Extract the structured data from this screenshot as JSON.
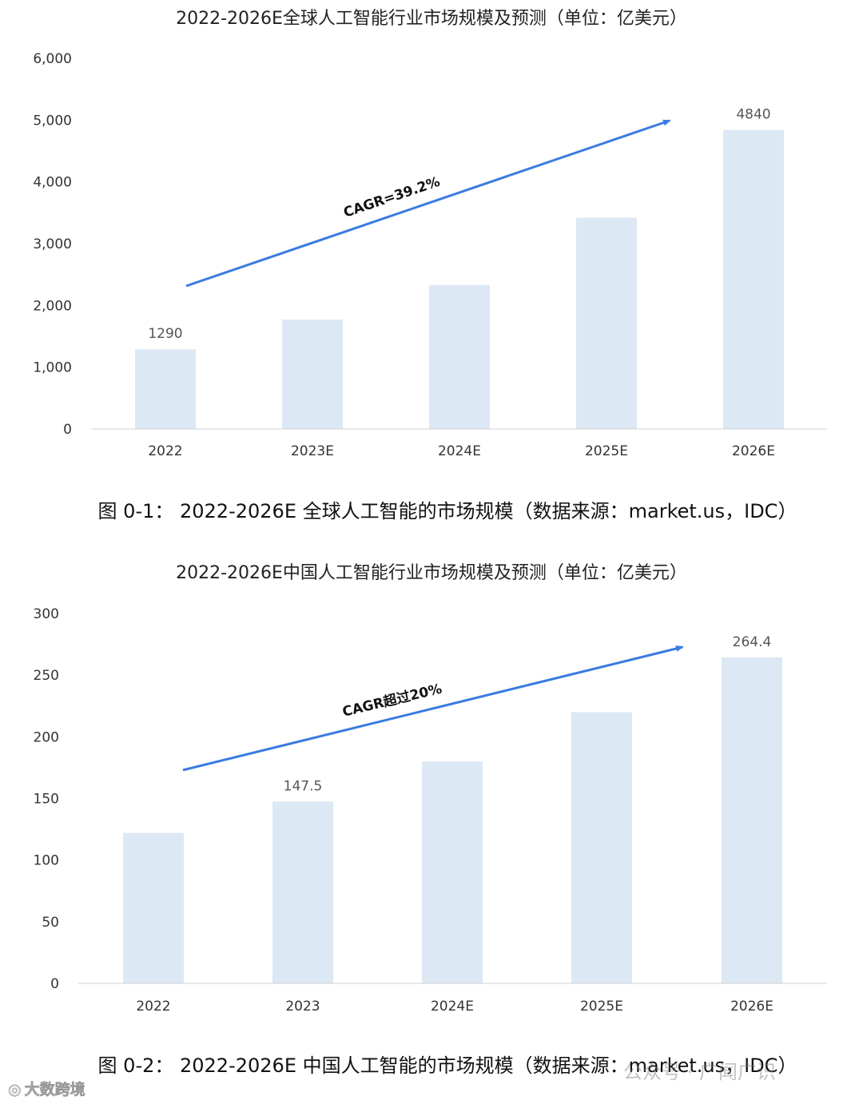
{
  "chart_data": [
    {
      "type": "bar",
      "title": "2022-2026E全球人工智能行业市场规模及预测（单位：亿美元）",
      "categories": [
        "2022",
        "2023E",
        "2024E",
        "2025E",
        "2026E"
      ],
      "values": [
        1290,
        1770,
        2330,
        3420,
        4840
      ],
      "data_labels": [
        "1290",
        "",
        "",
        "",
        "4840"
      ],
      "ylim": [
        0,
        6000
      ],
      "yticks": [
        0,
        1000,
        2000,
        3000,
        4000,
        5000,
        6000
      ],
      "ytick_labels": [
        "0",
        "1,000",
        "2,000",
        "3,000",
        "4,000",
        "5,000",
        "6,000"
      ],
      "xlabel": "",
      "ylabel": "",
      "grid": false,
      "bar_color": "#dde8f5",
      "annotation": {
        "text": "CAGR=39.2%",
        "arrow_color": "#3a7be0"
      },
      "caption": "图 0-1： 2022-2026E 全球人工智能的市场规模（数据来源：market.us，IDC）"
    },
    {
      "type": "bar",
      "title": "2022-2026E中国人工智能行业市场规模及预测（单位：亿美元）",
      "categories": [
        "2022",
        "2023",
        "2024E",
        "2025E",
        "2026E"
      ],
      "values": [
        122,
        147.5,
        180,
        220,
        264.4
      ],
      "data_labels": [
        "",
        "147.5",
        "",
        "",
        "264.4"
      ],
      "ylim": [
        0,
        300
      ],
      "yticks": [
        0,
        50,
        100,
        150,
        200,
        250,
        300
      ],
      "ytick_labels": [
        "0",
        "50",
        "100",
        "150",
        "200",
        "250",
        "300"
      ],
      "xlabel": "",
      "ylabel": "",
      "grid": false,
      "bar_color": "#dde8f5",
      "annotation": {
        "text": "CAGR超过20%",
        "arrow_color": "#3a7be0"
      },
      "caption": "图 0-2： 2022-2026E 中国人工智能的市场规模（数据来源：market.us，IDC）"
    }
  ],
  "watermarks": {
    "left": "大数跨境",
    "right": "公众号 · 广闻广识"
  }
}
